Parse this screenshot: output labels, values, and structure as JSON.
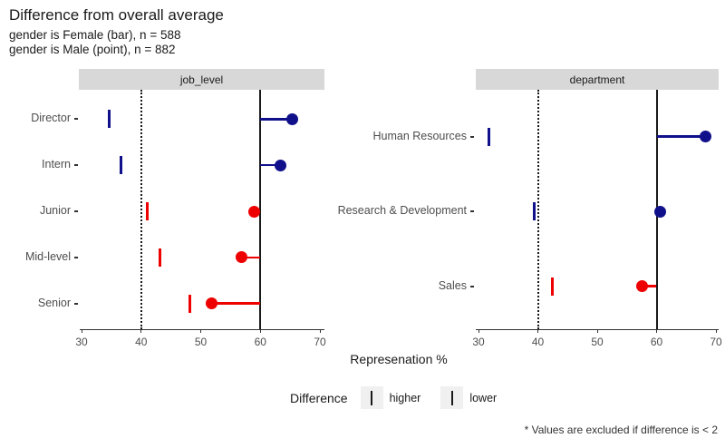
{
  "title": "Difference from overall average",
  "subtitle1": "gender is Female (bar), n = 588",
  "subtitle2": "gender is Male (point), n = 882",
  "axis": {
    "title": "Represenation %",
    "ticks": [
      30,
      40,
      50,
      60,
      70
    ],
    "min": 30,
    "max": 70
  },
  "reference_lines": {
    "dotted_female_average": 40,
    "solid_male_average": 60
  },
  "legend": {
    "title": "Difference",
    "items": [
      {
        "label": "higher",
        "icon": "vertical-bar-icon"
      },
      {
        "label": "lower",
        "icon": "vertical-bar-icon"
      }
    ]
  },
  "caption": "* Values are excluded if difference is < 2",
  "colors": {
    "higher_blue": "#10108b",
    "lower_red": "#ee0000",
    "strip_background": "#d8d8d8",
    "axis_text_gray": "#4d4d4d",
    "line_black": "#1a1a1a"
  },
  "chart_data": [
    {
      "type": "scatter",
      "facet": "job_level",
      "categories": [
        "Director",
        "Intern",
        "Junior",
        "Mid-level",
        "Senior"
      ],
      "series": [
        {
          "name": "Female (bar)",
          "values": [
            34.7,
            36.6,
            41.1,
            43.1,
            48.1
          ]
        },
        {
          "name": "Male (point)",
          "values": [
            65.3,
            63.4,
            58.9,
            56.9,
            51.9
          ]
        }
      ],
      "row_colors": [
        "blue",
        "blue",
        "red",
        "red",
        "red"
      ],
      "xlim": [
        30,
        70
      ],
      "grid": false,
      "reference_dotted": 40,
      "reference_solid": 60
    },
    {
      "type": "scatter",
      "facet": "department",
      "categories": [
        "Human Resources",
        "Research & Development",
        "Sales"
      ],
      "series": [
        {
          "name": "Female (bar)",
          "values": [
            31.7,
            39.4,
            42.4
          ]
        },
        {
          "name": "Male (point)",
          "values": [
            68.3,
            60.6,
            57.6
          ]
        }
      ],
      "row_colors": [
        "blue",
        "blue",
        "red"
      ],
      "xlim": [
        30,
        70
      ],
      "grid": false,
      "reference_dotted": 40,
      "reference_solid": 60
    }
  ]
}
